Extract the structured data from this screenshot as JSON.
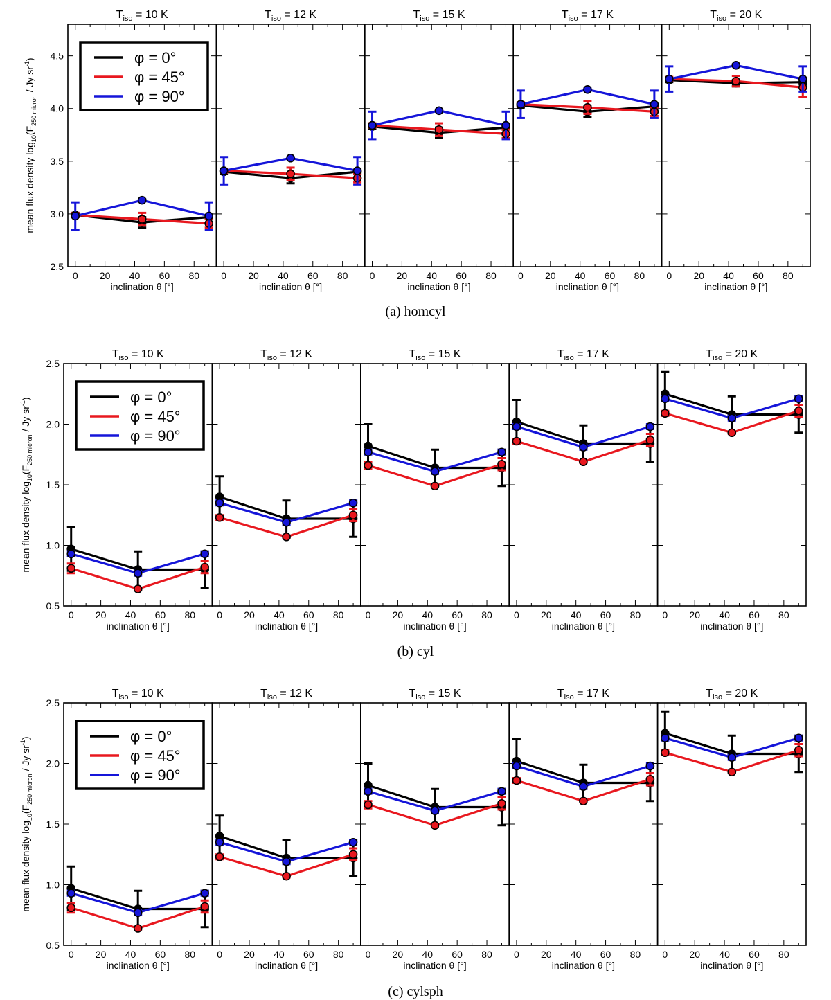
{
  "chart_data": [
    {
      "type": "line",
      "caption": "(a) homcyl",
      "ylabel_main": "mean flux density log",
      "ylabel_sub10": "10",
      "ylabel_paren": "(F",
      "ylabel_sub": "250 micron",
      "ylabel_unit": " / Jy sr",
      "ylabel_sup": "-1",
      "ylabel_close": ")",
      "xlabel": "inclination θ [°]",
      "ylim": [
        2.5,
        4.8
      ],
      "yticks": [
        2.5,
        3.0,
        3.5,
        4.0,
        4.5
      ],
      "ytick_labels": [
        "2.5",
        "3.0",
        "3.5",
        "4.0",
        "4.5"
      ],
      "xlim": [
        -5,
        95
      ],
      "xticks": [
        0,
        20,
        40,
        60,
        80
      ],
      "xtick_labels": [
        "0",
        "20",
        "40",
        "60",
        "80"
      ],
      "x": [
        0,
        45,
        90
      ],
      "legend_loc": "top-left",
      "legend": [
        {
          "label": "φ =  0°",
          "color": "#000000"
        },
        {
          "label": "φ = 45°",
          "color": "#e8181f"
        },
        {
          "label": "φ = 90°",
          "color": "#1515d9"
        }
      ],
      "panels": [
        {
          "title_T": "T",
          "title_sub": "iso",
          "title_rest": " = 10 K",
          "series": [
            {
              "name": "φ = 0°",
              "color": "#000000",
              "values": [
                2.99,
                2.92,
                2.97
              ],
              "err": [
                0.02,
                0.05,
                0.02
              ]
            },
            {
              "name": "φ = 45°",
              "color": "#e8181f",
              "values": [
                2.99,
                2.95,
                2.91
              ],
              "err": [
                0.02,
                0.06,
                0.04
              ]
            },
            {
              "name": "φ = 90°",
              "color": "#1515d9",
              "values": [
                2.98,
                3.13,
                2.98
              ],
              "err": [
                0.13,
                0.01,
                0.13
              ]
            }
          ]
        },
        {
          "title_T": "T",
          "title_sub": "iso",
          "title_rest": " = 12 K",
          "series": [
            {
              "name": "φ = 0°",
              "color": "#000000",
              "values": [
                3.4,
                3.34,
                3.4
              ],
              "err": [
                0.02,
                0.05,
                0.02
              ]
            },
            {
              "name": "φ = 45°",
              "color": "#e8181f",
              "values": [
                3.41,
                3.38,
                3.34
              ],
              "err": [
                0.02,
                0.06,
                0.04
              ]
            },
            {
              "name": "φ = 90°",
              "color": "#1515d9",
              "values": [
                3.41,
                3.53,
                3.41
              ],
              "err": [
                0.13,
                0.01,
                0.13
              ]
            }
          ]
        },
        {
          "title_T": "T",
          "title_sub": "iso",
          "title_rest": " = 15 K",
          "series": [
            {
              "name": "φ = 0°",
              "color": "#000000",
              "values": [
                3.83,
                3.77,
                3.82
              ],
              "err": [
                0.02,
                0.05,
                0.02
              ]
            },
            {
              "name": "φ = 45°",
              "color": "#e8181f",
              "values": [
                3.84,
                3.8,
                3.76
              ],
              "err": [
                0.02,
                0.06,
                0.04
              ]
            },
            {
              "name": "φ = 90°",
              "color": "#1515d9",
              "values": [
                3.84,
                3.98,
                3.84
              ],
              "err": [
                0.13,
                0.01,
                0.13
              ]
            }
          ]
        },
        {
          "title_T": "T",
          "title_sub": "iso",
          "title_rest": " = 17 K",
          "series": [
            {
              "name": "φ = 0°",
              "color": "#000000",
              "values": [
                4.03,
                3.97,
                4.02
              ],
              "err": [
                0.02,
                0.05,
                0.02
              ]
            },
            {
              "name": "φ = 45°",
              "color": "#e8181f",
              "values": [
                4.04,
                4.01,
                3.97
              ],
              "err": [
                0.02,
                0.06,
                0.04
              ]
            },
            {
              "name": "φ = 90°",
              "color": "#1515d9",
              "values": [
                4.04,
                4.18,
                4.04
              ],
              "err": [
                0.13,
                0.01,
                0.13
              ]
            }
          ]
        },
        {
          "title_T": "T",
          "title_sub": "iso",
          "title_rest": " = 20 K",
          "series": [
            {
              "name": "φ = 0°",
              "color": "#000000",
              "values": [
                4.27,
                4.24,
                4.25
              ],
              "err": [
                0.02,
                0.03,
                0.02
              ]
            },
            {
              "name": "φ = 45°",
              "color": "#e8181f",
              "values": [
                4.28,
                4.26,
                4.2
              ],
              "err": [
                0.02,
                0.05,
                0.09
              ]
            },
            {
              "name": "φ = 90°",
              "color": "#1515d9",
              "values": [
                4.28,
                4.41,
                4.28
              ],
              "err": [
                0.12,
                0.01,
                0.12
              ]
            }
          ]
        }
      ]
    },
    {
      "type": "line",
      "caption": "(b) cyl",
      "ylabel_main": "mean flux density log",
      "ylabel_sub10": "10",
      "ylabel_paren": "(F",
      "ylabel_sub": "250 micron",
      "ylabel_unit": " / Jy sr",
      "ylabel_sup": "-1",
      "ylabel_close": ")",
      "xlabel": "inclination θ [°]",
      "ylim": [
        0.5,
        2.5
      ],
      "yticks": [
        0.5,
        1.0,
        1.5,
        2.0,
        2.5
      ],
      "ytick_labels": [
        "0.5",
        "1.0",
        "1.5",
        "2.0",
        "2.5"
      ],
      "xlim": [
        -5,
        95
      ],
      "xticks": [
        0,
        20,
        40,
        60,
        80
      ],
      "xtick_labels": [
        "0",
        "20",
        "40",
        "60",
        "80"
      ],
      "x": [
        0,
        45,
        90
      ],
      "legend_loc": "top-left",
      "legend": [
        {
          "label": "φ =  0°",
          "color": "#000000"
        },
        {
          "label": "φ = 45°",
          "color": "#e8181f"
        },
        {
          "label": "φ = 90°",
          "color": "#1515d9"
        }
      ],
      "panels": [
        {
          "title_T": "T",
          "title_sub": "iso",
          "title_rest": " = 10 K",
          "series": [
            {
              "name": "φ = 0°",
              "color": "#000000",
              "values": [
                0.97,
                0.8,
                0.8
              ],
              "err": [
                0.18,
                0.15,
                0.15
              ]
            },
            {
              "name": "φ = 45°",
              "color": "#e8181f",
              "values": [
                0.81,
                0.64,
                0.82
              ],
              "err": [
                0.04,
                0.01,
                0.05
              ]
            },
            {
              "name": "φ = 90°",
              "color": "#1515d9",
              "values": [
                0.93,
                0.77,
                0.93
              ],
              "err": [
                0.02,
                0.02,
                0.02
              ]
            }
          ]
        },
        {
          "title_T": "T",
          "title_sub": "iso",
          "title_rest": " = 12 K",
          "series": [
            {
              "name": "φ = 0°",
              "color": "#000000",
              "values": [
                1.4,
                1.22,
                1.22
              ],
              "err": [
                0.17,
                0.15,
                0.15
              ]
            },
            {
              "name": "φ = 45°",
              "color": "#e8181f",
              "values": [
                1.23,
                1.07,
                1.25
              ],
              "err": [
                0.02,
                0.01,
                0.05
              ]
            },
            {
              "name": "φ = 90°",
              "color": "#1515d9",
              "values": [
                1.35,
                1.19,
                1.35
              ],
              "err": [
                0.02,
                0.02,
                0.02
              ]
            }
          ]
        },
        {
          "title_T": "T",
          "title_sub": "iso",
          "title_rest": " = 15 K",
          "series": [
            {
              "name": "φ = 0°",
              "color": "#000000",
              "values": [
                1.82,
                1.64,
                1.64
              ],
              "err": [
                0.18,
                0.15,
                0.15
              ]
            },
            {
              "name": "φ = 45°",
              "color": "#e8181f",
              "values": [
                1.66,
                1.49,
                1.67
              ],
              "err": [
                0.03,
                0.01,
                0.05
              ]
            },
            {
              "name": "φ = 90°",
              "color": "#1515d9",
              "values": [
                1.77,
                1.61,
                1.77
              ],
              "err": [
                0.02,
                0.02,
                0.02
              ]
            }
          ]
        },
        {
          "title_T": "T",
          "title_sub": "iso",
          "title_rest": " = 17 K",
          "series": [
            {
              "name": "φ = 0°",
              "color": "#000000",
              "values": [
                2.02,
                1.84,
                1.84
              ],
              "err": [
                0.18,
                0.15,
                0.15
              ]
            },
            {
              "name": "φ = 45°",
              "color": "#e8181f",
              "values": [
                1.86,
                1.69,
                1.87
              ],
              "err": [
                0.02,
                0.01,
                0.05
              ]
            },
            {
              "name": "φ = 90°",
              "color": "#1515d9",
              "values": [
                1.98,
                1.81,
                1.98
              ],
              "err": [
                0.02,
                0.02,
                0.02
              ]
            }
          ]
        },
        {
          "title_T": "T",
          "title_sub": "iso",
          "title_rest": " = 20 K",
          "series": [
            {
              "name": "φ = 0°",
              "color": "#000000",
              "values": [
                2.25,
                2.08,
                2.08
              ],
              "err": [
                0.18,
                0.15,
                0.15
              ]
            },
            {
              "name": "φ = 45°",
              "color": "#e8181f",
              "values": [
                2.09,
                1.93,
                2.11
              ],
              "err": [
                0.02,
                0.01,
                0.05
              ]
            },
            {
              "name": "φ = 90°",
              "color": "#1515d9",
              "values": [
                2.21,
                2.05,
                2.21
              ],
              "err": [
                0.02,
                0.02,
                0.02
              ]
            }
          ]
        }
      ]
    },
    {
      "type": "line",
      "caption": "(c) cylsph",
      "ylabel_main": "mean flux density log",
      "ylabel_sub10": "10",
      "ylabel_paren": "(F",
      "ylabel_sub": "250 micron",
      "ylabel_unit": " / Jy sr",
      "ylabel_sup": "-1",
      "ylabel_close": ")",
      "xlabel": "inclination θ [°]",
      "ylim": [
        0.5,
        2.5
      ],
      "yticks": [
        0.5,
        1.0,
        1.5,
        2.0,
        2.5
      ],
      "ytick_labels": [
        "0.5",
        "1.0",
        "1.5",
        "2.0",
        "2.5"
      ],
      "xlim": [
        -5,
        95
      ],
      "xticks": [
        0,
        20,
        40,
        60,
        80
      ],
      "xtick_labels": [
        "0",
        "20",
        "40",
        "60",
        "80"
      ],
      "x": [
        0,
        45,
        90
      ],
      "legend_loc": "top-left",
      "legend": [
        {
          "label": "φ =  0°",
          "color": "#000000"
        },
        {
          "label": "φ = 45°",
          "color": "#e8181f"
        },
        {
          "label": "φ = 90°",
          "color": "#1515d9"
        }
      ],
      "panels": [
        {
          "title_T": "T",
          "title_sub": "iso",
          "title_rest": " = 10 K",
          "series": [
            {
              "name": "φ = 0°",
              "color": "#000000",
              "values": [
                0.97,
                0.8,
                0.8
              ],
              "err": [
                0.18,
                0.15,
                0.15
              ]
            },
            {
              "name": "φ = 45°",
              "color": "#e8181f",
              "values": [
                0.81,
                0.64,
                0.82
              ],
              "err": [
                0.04,
                0.01,
                0.05
              ]
            },
            {
              "name": "φ = 90°",
              "color": "#1515d9",
              "values": [
                0.93,
                0.77,
                0.93
              ],
              "err": [
                0.02,
                0.02,
                0.02
              ]
            }
          ]
        },
        {
          "title_T": "T",
          "title_sub": "iso",
          "title_rest": " = 12 K",
          "series": [
            {
              "name": "φ = 0°",
              "color": "#000000",
              "values": [
                1.4,
                1.22,
                1.22
              ],
              "err": [
                0.17,
                0.15,
                0.15
              ]
            },
            {
              "name": "φ = 45°",
              "color": "#e8181f",
              "values": [
                1.23,
                1.07,
                1.25
              ],
              "err": [
                0.02,
                0.01,
                0.05
              ]
            },
            {
              "name": "φ = 90°",
              "color": "#1515d9",
              "values": [
                1.35,
                1.19,
                1.35
              ],
              "err": [
                0.02,
                0.02,
                0.02
              ]
            }
          ]
        },
        {
          "title_T": "T",
          "title_sub": "iso",
          "title_rest": " = 15 K",
          "series": [
            {
              "name": "φ = 0°",
              "color": "#000000",
              "values": [
                1.82,
                1.64,
                1.64
              ],
              "err": [
                0.18,
                0.15,
                0.15
              ]
            },
            {
              "name": "φ = 45°",
              "color": "#e8181f",
              "values": [
                1.66,
                1.49,
                1.67
              ],
              "err": [
                0.03,
                0.01,
                0.05
              ]
            },
            {
              "name": "φ = 90°",
              "color": "#1515d9",
              "values": [
                1.77,
                1.61,
                1.77
              ],
              "err": [
                0.02,
                0.02,
                0.02
              ]
            }
          ]
        },
        {
          "title_T": "T",
          "title_sub": "iso",
          "title_rest": " = 17 K",
          "series": [
            {
              "name": "φ = 0°",
              "color": "#000000",
              "values": [
                2.02,
                1.84,
                1.84
              ],
              "err": [
                0.18,
                0.15,
                0.15
              ]
            },
            {
              "name": "φ = 45°",
              "color": "#e8181f",
              "values": [
                1.86,
                1.69,
                1.87
              ],
              "err": [
                0.02,
                0.01,
                0.05
              ]
            },
            {
              "name": "φ = 90°",
              "color": "#1515d9",
              "values": [
                1.98,
                1.81,
                1.98
              ],
              "err": [
                0.02,
                0.02,
                0.02
              ]
            }
          ]
        },
        {
          "title_T": "T",
          "title_sub": "iso",
          "title_rest": " = 20 K",
          "series": [
            {
              "name": "φ = 0°",
              "color": "#000000",
              "values": [
                2.25,
                2.08,
                2.08
              ],
              "err": [
                0.18,
                0.15,
                0.15
              ]
            },
            {
              "name": "φ = 45°",
              "color": "#e8181f",
              "values": [
                2.09,
                1.93,
                2.11
              ],
              "err": [
                0.02,
                0.01,
                0.05
              ]
            },
            {
              "name": "φ = 90°",
              "color": "#1515d9",
              "values": [
                2.21,
                2.05,
                2.21
              ],
              "err": [
                0.02,
                0.02,
                0.02
              ]
            }
          ]
        }
      ]
    }
  ]
}
